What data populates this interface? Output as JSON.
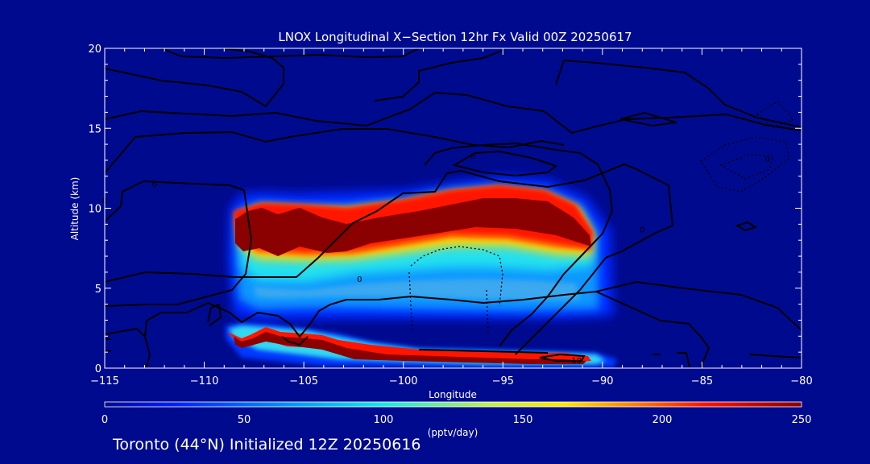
{
  "chart_data": {
    "type": "heatmap",
    "title": "LNOX Longitudinal X−Section 12hr  Fx Valid 00Z 20250617",
    "xlabel": "Longitude",
    "ylabel": "Altitude (km)",
    "xlim": [
      -115,
      -80
    ],
    "ylim": [
      0,
      20
    ],
    "x_ticks": [
      -115,
      -110,
      -105,
      -100,
      -95,
      -90,
      -85,
      -80
    ],
    "x_tick_labels": [
      "−115",
      "−110",
      "−105",
      "−100",
      "−95",
      "−90",
      "−85",
      "−80"
    ],
    "y_ticks": [
      0,
      5,
      10,
      15,
      20
    ],
    "y_tick_labels": [
      "0",
      "5",
      "10",
      "15",
      "20"
    ],
    "colorbar": {
      "label": "(pptv/day)",
      "range": [
        0,
        250
      ],
      "ticks": [
        0,
        50,
        100,
        150,
        200,
        250
      ],
      "tick_labels": [
        "0",
        "50",
        "100",
        "150",
        "200",
        "250"
      ],
      "colors": [
        "#000a8f",
        "#0020ff",
        "#00a0ff",
        "#18e8e8",
        "#c0f050",
        "#ffe800",
        "#ff8000",
        "#ff1400",
        "#8b0000"
      ]
    },
    "regions": [
      {
        "name": "upper",
        "lon": [
          -109,
          -89.5
        ],
        "alt": [
          3.5,
          11.5
        ],
        "peak_alt": 8.8,
        "peak_value": 250
      },
      {
        "name": "lower",
        "lon": [
          -109.5,
          -89.5
        ],
        "alt": [
          0.1,
          2.4
        ],
        "peak_value": 250
      }
    ],
    "contour_labels": [
      {
        "text": "0",
        "lon": -112.5,
        "alt": 11.5
      },
      {
        "text": "0",
        "lon": -102.2,
        "alt": 5.6
      },
      {
        "text": "0",
        "lon": -96.5,
        "alt": 13.3
      },
      {
        "text": "0",
        "lon": -88,
        "alt": 8.7
      },
      {
        "text": "0",
        "lon": -81.7,
        "alt": 13.1
      },
      {
        "text": "0",
        "lon": -115,
        "alt": 10.5
      },
      {
        "text": "10",
        "lon": -91.3,
        "alt": 0.5
      }
    ],
    "grid": false
  },
  "footer": "Toronto (44°N) Initialized 12Z 20250616"
}
